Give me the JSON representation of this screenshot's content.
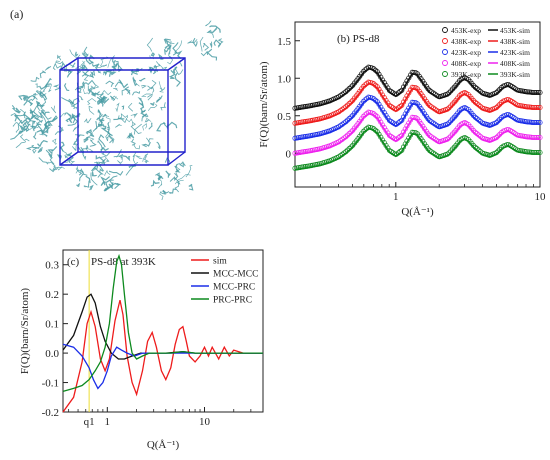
{
  "panels": {
    "a": {
      "label": "(a)"
    },
    "b": {
      "label": "(b) PS-d8"
    },
    "c": {
      "label": "(c)",
      "title": "PS-d8 at 393K",
      "q1_label": "q1"
    }
  },
  "colors": {
    "black": "#111111",
    "red": "#ee1c1c",
    "blue": "#1b2ee8",
    "magenta": "#ee22ee",
    "green": "#0d8a1e",
    "cube": "#2222cc",
    "molecule": "#4a9ca4",
    "q1_line": "#eedd33"
  },
  "chart_data": [
    {
      "type": "line",
      "panel": "b",
      "title": "PS-d8",
      "xlabel": "Q(Å⁻¹)",
      "ylabel": "F(Q)(barn/Sr/atom)",
      "xscale": "log",
      "xlim": [
        0.2,
        10
      ],
      "ylim": [
        -0.45,
        1.75
      ],
      "xticks": [
        {
          "v": 1,
          "label": "1"
        },
        {
          "v": 10,
          "label": "10"
        }
      ],
      "yticks": [
        {
          "v": 0,
          "label": "0"
        },
        {
          "v": 0.5,
          "label": "0.5"
        },
        {
          "v": 1.0,
          "label": "1.0"
        },
        {
          "v": 1.5,
          "label": "1.5"
        }
      ],
      "legend_position": "top-right",
      "x": [
        0.2,
        0.25,
        0.3,
        0.35,
        0.4,
        0.45,
        0.5,
        0.55,
        0.6,
        0.65,
        0.7,
        0.75,
        0.8,
        0.9,
        1.0,
        1.1,
        1.2,
        1.3,
        1.4,
        1.5,
        1.7,
        2.0,
        2.3,
        2.6,
        2.8,
        3.0,
        3.2,
        3.5,
        4.0,
        4.5,
        5.0,
        5.5,
        6.0,
        6.5,
        7.0,
        8.0,
        9.0,
        10.0
      ],
      "base": [
        -0.22,
        -0.19,
        -0.16,
        -0.12,
        -0.07,
        0.0,
        0.08,
        0.18,
        0.28,
        0.33,
        0.31,
        0.26,
        0.17,
        0.02,
        -0.04,
        0.02,
        0.15,
        0.26,
        0.25,
        0.17,
        0.02,
        -0.07,
        -0.03,
        0.08,
        0.16,
        0.19,
        0.16,
        0.07,
        -0.02,
        -0.05,
        -0.01,
        0.07,
        0.1,
        0.06,
        0.02,
        0.0,
        -0.01,
        -0.01
      ],
      "series": [
        {
          "name": "453K-exp",
          "kind": "exp",
          "offset": 0.8,
          "color": "black"
        },
        {
          "name": "438K-exp",
          "kind": "exp",
          "offset": 0.6,
          "color": "red"
        },
        {
          "name": "423K-exp",
          "kind": "exp",
          "offset": 0.4,
          "color": "blue"
        },
        {
          "name": "408K-exp",
          "kind": "exp",
          "offset": 0.2,
          "color": "magenta"
        },
        {
          "name": "393K-exp",
          "kind": "exp",
          "offset": 0.0,
          "color": "green"
        },
        {
          "name": "453K-sim",
          "kind": "sim",
          "offset": 0.8,
          "color": "black"
        },
        {
          "name": "438K-sim",
          "kind": "sim",
          "offset": 0.6,
          "color": "red"
        },
        {
          "name": "423K-sim",
          "kind": "sim",
          "offset": 0.4,
          "color": "blue"
        },
        {
          "name": "408K-sim",
          "kind": "sim",
          "offset": 0.2,
          "color": "magenta"
        },
        {
          "name": "393K-sim",
          "kind": "sim",
          "offset": 0.0,
          "color": "green"
        }
      ]
    },
    {
      "type": "line",
      "panel": "c",
      "title": "PS-d8 at 393K",
      "xlabel": "Q(Å⁻¹)",
      "ylabel": "F(Q)(barn/Sr/atom)",
      "xscale": "log",
      "xlim": [
        0.35,
        40
      ],
      "ylim": [
        -0.2,
        0.35
      ],
      "xticks": [
        {
          "v": 1,
          "label": "1"
        },
        {
          "v": 10,
          "label": "10"
        }
      ],
      "yticks": [
        {
          "v": -0.2,
          "label": "-0.2"
        },
        {
          "v": -0.1,
          "label": "-0.1"
        },
        {
          "v": 0.0,
          "label": "0.0"
        },
        {
          "v": 0.1,
          "label": "0.1"
        },
        {
          "v": 0.2,
          "label": "0.2"
        },
        {
          "v": 0.3,
          "label": "0.3"
        }
      ],
      "q1": 0.65,
      "legend_position": "top-right",
      "series": [
        {
          "name": "sim",
          "color": "red",
          "x": [
            0.35,
            0.45,
            0.55,
            0.62,
            0.68,
            0.75,
            0.85,
            0.95,
            1.05,
            1.2,
            1.35,
            1.45,
            1.6,
            1.8,
            2.0,
            2.3,
            2.6,
            2.9,
            3.2,
            3.6,
            4.0,
            4.5,
            5.0,
            5.5,
            6.0,
            6.5,
            7.0,
            8.0,
            9.0,
            10.0,
            11.0,
            12.0,
            14.0,
            16.0,
            18.0,
            20.0,
            25.0,
            30.0,
            40.0
          ],
          "y": [
            -0.2,
            -0.15,
            -0.03,
            0.1,
            0.14,
            0.09,
            -0.02,
            -0.06,
            -0.02,
            0.11,
            0.18,
            0.13,
            -0.01,
            -0.1,
            -0.14,
            -0.06,
            0.04,
            0.07,
            0.02,
            -0.06,
            -0.09,
            -0.05,
            0.03,
            0.08,
            0.09,
            0.04,
            -0.01,
            -0.03,
            -0.01,
            0.02,
            -0.01,
            0.02,
            -0.02,
            0.02,
            -0.01,
            0.01,
            0.0,
            0.0,
            0.0
          ]
        },
        {
          "name": "MCC-MCC",
          "color": "black",
          "x": [
            0.35,
            0.45,
            0.55,
            0.62,
            0.68,
            0.75,
            0.85,
            0.95,
            1.1,
            1.3,
            1.5,
            1.8,
            2.2,
            3.0,
            4.0,
            6.0,
            8.0,
            10.0,
            15.0,
            20.0,
            40.0
          ],
          "y": [
            0.01,
            0.06,
            0.14,
            0.19,
            0.2,
            0.17,
            0.09,
            0.04,
            0.0,
            -0.02,
            -0.02,
            -0.01,
            0.0,
            0.0,
            0.0,
            0.005,
            0.0,
            0.0,
            0.0,
            0.0,
            0.0
          ]
        },
        {
          "name": "MCC-PRC",
          "color": "blue",
          "x": [
            0.35,
            0.45,
            0.55,
            0.65,
            0.72,
            0.8,
            0.9,
            1.0,
            1.1,
            1.25,
            1.4,
            1.6,
            1.9,
            2.3,
            3.0,
            4.0,
            5.0,
            7.0,
            10.0,
            15.0,
            40.0
          ],
          "y": [
            0.03,
            0.02,
            -0.01,
            -0.05,
            -0.09,
            -0.12,
            -0.1,
            -0.06,
            -0.01,
            0.02,
            0.01,
            0.0,
            -0.01,
            0.0,
            0.0,
            0.0,
            0.0,
            0.0,
            0.0,
            0.0,
            0.0
          ]
        },
        {
          "name": "PRC-PRC",
          "color": "green",
          "x": [
            0.35,
            0.45,
            0.55,
            0.65,
            0.75,
            0.85,
            0.95,
            1.05,
            1.15,
            1.25,
            1.32,
            1.4,
            1.5,
            1.65,
            1.8,
            2.0,
            2.3,
            2.7,
            3.5,
            4.5,
            6.0,
            8.0,
            10.0,
            15.0,
            40.0
          ],
          "y": [
            -0.13,
            -0.12,
            -0.11,
            -0.09,
            -0.06,
            -0.03,
            0.02,
            0.1,
            0.22,
            0.31,
            0.33,
            0.3,
            0.2,
            0.07,
            0.0,
            -0.02,
            -0.01,
            0.0,
            0.0,
            0.0,
            0.005,
            0.0,
            0.0,
            0.0,
            0.0
          ]
        }
      ]
    }
  ]
}
